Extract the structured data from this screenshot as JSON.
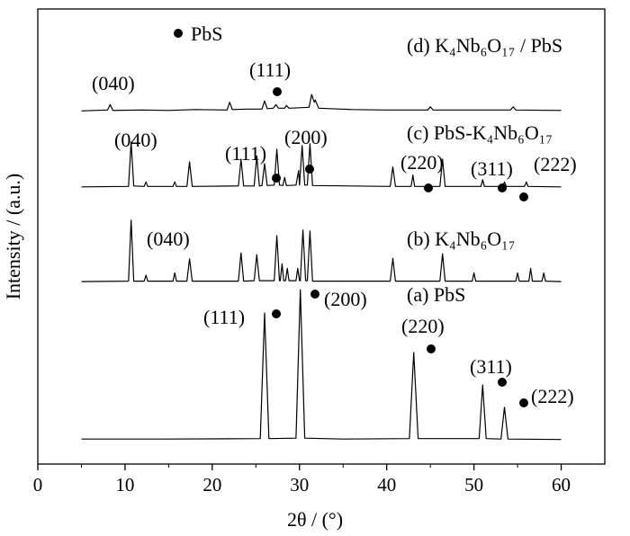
{
  "chart_data": {
    "type": "line",
    "xlabel": "2θ / (°)",
    "ylabel": "Intensity / (a.u.)",
    "xlim": [
      0,
      65
    ],
    "xticks": [
      0,
      10,
      20,
      30,
      40,
      50,
      60
    ],
    "ylim": [
      0,
      100
    ],
    "color": "#000000",
    "annotations": [
      "PbS",
      "(d) K₄Nb₆O₁₇ / PbS",
      "(040)",
      "(111)",
      "(c) PbS-K₄Nb₆O₁₇",
      "(040)",
      "(111)",
      "(200)",
      "(220)",
      "(311)",
      "(222)",
      "(b) K₄Nb₆O₁₇",
      "(040)",
      "(a) PbS",
      "(111)",
      "(200)",
      "(220)",
      "(311)",
      "(222)"
    ],
    "series": [
      {
        "x": [
          5,
          8,
          8.3,
          8.6,
          12,
          15,
          18,
          21.7,
          22,
          22.3,
          24,
          25.7,
          26.0,
          26.3,
          27.0,
          27.3,
          27.6,
          28.3,
          28.5,
          28.8,
          30,
          31.1,
          31.4,
          31.7,
          31.8,
          32.2,
          36,
          40,
          44.7,
          45,
          45.3,
          50,
          54.2,
          54.5,
          54.8,
          60
        ],
        "values": [
          77.6,
          77.8,
          79,
          77.7,
          77.8,
          77.7,
          77.9,
          77.8,
          79.5,
          77.9,
          78,
          78,
          79.8,
          78.1,
          78.2,
          79,
          78.2,
          78.2,
          78.8,
          78.2,
          78.3,
          78.4,
          81.2,
          79.5,
          80,
          78.2,
          77.9,
          77.8,
          77.8,
          78.5,
          77.8,
          77.8,
          77.8,
          78.5,
          77.8,
          77.7
        ]
      },
      {
        "x": [
          5,
          10.4,
          10.7,
          11.0,
          12.2,
          12.4,
          12.6,
          15.5,
          15.7,
          15.9,
          17.1,
          17.4,
          17.7,
          23.0,
          23.3,
          23.6,
          24.8,
          25.1,
          25.4,
          25.7,
          26.0,
          26.3,
          27.1,
          27.4,
          27.7,
          28.1,
          28.3,
          28.5,
          29.6,
          29.9,
          30.0,
          30.3,
          30.6,
          30.9,
          31.2,
          31.5,
          40.4,
          40.7,
          41.0,
          42.8,
          43.0,
          43.2,
          46.1,
          46.4,
          46.7,
          50.8,
          51,
          51.2,
          53.3,
          53.5,
          53.7,
          55.8,
          56,
          56.2,
          60
        ],
        "values": [
          60.9,
          61,
          70.8,
          61.1,
          61,
          62,
          61,
          61,
          62,
          61,
          61,
          66.4,
          61,
          61.1,
          67,
          61.1,
          61.1,
          67.7,
          61.1,
          61.2,
          66,
          61.2,
          61.3,
          69.2,
          61.3,
          61.2,
          63,
          61.2,
          61.3,
          64.5,
          61.3,
          70,
          61.3,
          61.3,
          70.4,
          61.2,
          61,
          65.3,
          61,
          61,
          63.5,
          61,
          61,
          67,
          61,
          61,
          62.5,
          61,
          61,
          62,
          61,
          61,
          62,
          61,
          60.9
        ]
      },
      {
        "x": [
          5,
          10.4,
          10.7,
          11.0,
          12.2,
          12.4,
          12.6,
          15.5,
          15.7,
          15.9,
          17.1,
          17.4,
          17.7,
          23.0,
          23.3,
          23.6,
          24.8,
          25.1,
          25.4,
          27.1,
          27.4,
          27.7,
          27.8,
          28.0,
          28.2,
          28.4,
          28.6,
          28.8,
          29.6,
          29.8,
          30.0,
          30.1,
          30.4,
          30.7,
          30.9,
          31.2,
          31.5,
          40.4,
          40.7,
          41.0,
          46.1,
          46.4,
          46.7,
          49.8,
          50,
          50.2,
          54.8,
          55,
          55.2,
          56.3,
          56.5,
          56.7,
          57.8,
          58,
          58.2,
          60
        ],
        "values": [
          40.1,
          40.2,
          53.6,
          40.2,
          40.2,
          41.5,
          40.2,
          40.2,
          42,
          40.2,
          40.2,
          45.1,
          40.2,
          40.2,
          46.4,
          40.2,
          40.3,
          46,
          40.3,
          40.3,
          50.2,
          40.3,
          40.3,
          44,
          40.3,
          40.3,
          43,
          40.3,
          40.3,
          43,
          40.3,
          40.3,
          51.4,
          40.3,
          40.3,
          51.2,
          40.2,
          40.2,
          45.2,
          40.2,
          40.2,
          46.2,
          40.2,
          40.2,
          42,
          40.2,
          40.2,
          42,
          40.2,
          40.2,
          43,
          40.2,
          40.2,
          42,
          40.2,
          40.1
        ]
      },
      {
        "x": [
          5,
          15,
          25.5,
          26.0,
          26.5,
          29.6,
          30.1,
          30.6,
          35,
          42.6,
          43.1,
          43.6,
          50.6,
          51.0,
          51.4,
          53.1,
          53.5,
          53.9,
          60
        ],
        "values": [
          5.5,
          5.5,
          5.6,
          33.2,
          5.6,
          5.7,
          38.3,
          5.7,
          5.5,
          5.6,
          24.5,
          5.6,
          5.6,
          17.4,
          5.6,
          5.5,
          12.5,
          5.5,
          5.4
        ]
      }
    ]
  }
}
